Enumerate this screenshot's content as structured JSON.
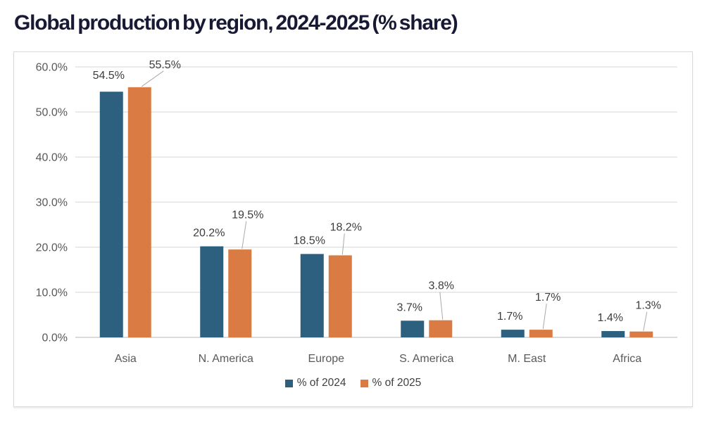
{
  "page": {
    "title": "Global production by region, 2024-2025 (% share)"
  },
  "chart_data": {
    "type": "bar",
    "title": "Global production by region, 2024-2025 (% share)",
    "categories": [
      "Asia",
      "N. America",
      "Europe",
      "S. America",
      "M. East",
      "Africa"
    ],
    "series": [
      {
        "name": "% of 2024",
        "color": "#2d5f7f",
        "values": [
          54.5,
          20.2,
          18.5,
          3.7,
          1.7,
          1.4
        ],
        "labels": [
          "54.5%",
          "20.2%",
          "18.5%",
          "3.7%",
          "1.7%",
          "1.4%"
        ]
      },
      {
        "name": "% of 2025",
        "color": "#d97b42",
        "values": [
          55.5,
          19.5,
          18.2,
          3.8,
          1.7,
          1.3
        ],
        "labels": [
          "55.5%",
          "19.5%",
          "18.2%",
          "3.8%",
          "1.7%",
          "1.3%"
        ]
      }
    ],
    "xlabel": "",
    "ylabel": "",
    "y_axis": {
      "min": 0,
      "max": 60,
      "step": 10,
      "tick_labels": [
        "0.0%",
        "10.0%",
        "20.0%",
        "30.0%",
        "40.0%",
        "50.0%",
        "60.0%"
      ]
    },
    "grid": true,
    "legend": {
      "position": "bottom",
      "entries": [
        "% of 2024",
        "% of 2025"
      ]
    },
    "colors": {
      "series_2024": "#2d5f7f",
      "series_2025": "#d97b42",
      "gridline": "#e3e3e3",
      "baseline": "#cfcfcf",
      "tick_text": "#595959",
      "data_label_text": "#3d3d3d",
      "leader_line": "#a9a9a9",
      "title_text": "#181935",
      "panel_border": "#d9d9d9"
    }
  }
}
